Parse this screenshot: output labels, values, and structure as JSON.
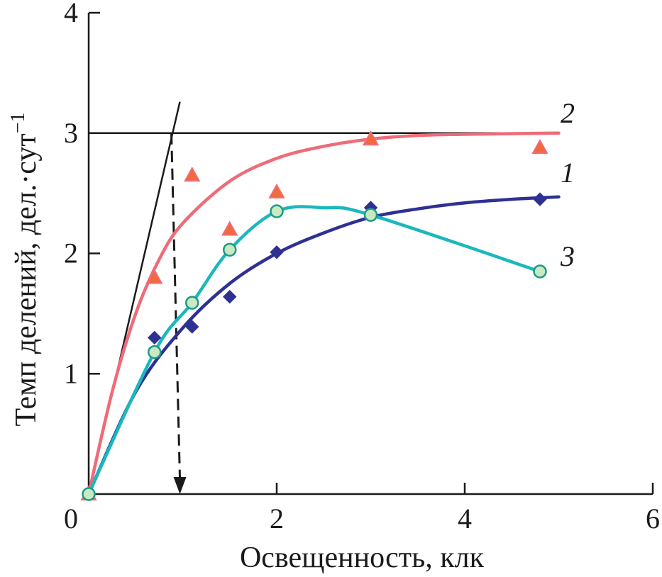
{
  "chart_data": {
    "type": "line",
    "title": "",
    "xlabel": "Освещенность, клк",
    "ylabel": "Темп делений, дел.·сут",
    "ylabel_sup": "−1",
    "xlim": [
      0,
      6
    ],
    "ylim": [
      0,
      4
    ],
    "x_ticks": [
      0,
      2,
      4,
      6
    ],
    "y_ticks": [
      1,
      2,
      3,
      4
    ],
    "x_tick_labels": [
      "0",
      "2",
      "4",
      "6"
    ],
    "y_tick_labels": [
      "1",
      "2",
      "3",
      "4"
    ],
    "grid": false,
    "legend": "none",
    "series": [
      {
        "label": "1",
        "color": "#2e3192",
        "marker": "diamond",
        "points": [
          [
            0.0,
            0.0
          ],
          [
            0.7,
            1.3
          ],
          [
            1.1,
            1.39
          ],
          [
            1.5,
            1.64
          ],
          [
            2.0,
            2.01
          ],
          [
            3.0,
            2.38
          ],
          [
            4.8,
            2.45
          ]
        ],
        "curve": [
          [
            0.0,
            0.0
          ],
          [
            0.5,
            0.85
          ],
          [
            1.0,
            1.38
          ],
          [
            1.5,
            1.75
          ],
          [
            2.0,
            2.0
          ],
          [
            2.5,
            2.17
          ],
          [
            3.0,
            2.3
          ],
          [
            3.5,
            2.37
          ],
          [
            4.0,
            2.42
          ],
          [
            4.5,
            2.45
          ],
          [
            5.0,
            2.47
          ]
        ]
      },
      {
        "label": "2",
        "color": "#ef6b78",
        "marker": "triangle",
        "marker_color": "#f26a3a",
        "points": [
          [
            0.0,
            0.0
          ],
          [
            0.7,
            1.8
          ],
          [
            1.1,
            2.65
          ],
          [
            1.5,
            2.2
          ],
          [
            2.0,
            2.51
          ],
          [
            3.0,
            2.95
          ],
          [
            4.8,
            2.88
          ]
        ],
        "curve": [
          [
            0.0,
            0.0
          ],
          [
            0.25,
            0.85
          ],
          [
            0.5,
            1.5
          ],
          [
            0.75,
            1.95
          ],
          [
            1.0,
            2.25
          ],
          [
            1.5,
            2.6
          ],
          [
            2.0,
            2.79
          ],
          [
            2.5,
            2.89
          ],
          [
            3.0,
            2.95
          ],
          [
            3.5,
            2.98
          ],
          [
            4.0,
            2.99
          ],
          [
            5.0,
            3.0
          ]
        ]
      },
      {
        "label": "3",
        "color": "#1ab8bd",
        "marker": "circle",
        "marker_color": "#c8eac0",
        "points": [
          [
            0.0,
            0.0
          ],
          [
            0.7,
            1.18
          ],
          [
            1.1,
            1.59
          ],
          [
            1.5,
            2.03
          ],
          [
            2.0,
            2.35
          ],
          [
            3.0,
            2.32
          ],
          [
            4.8,
            1.85
          ]
        ],
        "curve": [
          [
            0.0,
            0.0
          ],
          [
            0.7,
            1.18
          ],
          [
            1.1,
            1.59
          ],
          [
            1.5,
            2.03
          ],
          [
            2.0,
            2.35
          ],
          [
            2.5,
            2.38
          ],
          [
            3.0,
            2.32
          ],
          [
            4.8,
            1.85
          ]
        ]
      }
    ],
    "annotations": {
      "saturation_level": 3.0,
      "saturation_line_x_end": 5.0,
      "initial_slope_line": [
        [
          0.0,
          0.0
        ],
        [
          0.97,
          3.26
        ]
      ],
      "dashed_arrow": {
        "x": 0.97,
        "from_y": 3.0,
        "to_y": 0.0
      }
    }
  }
}
